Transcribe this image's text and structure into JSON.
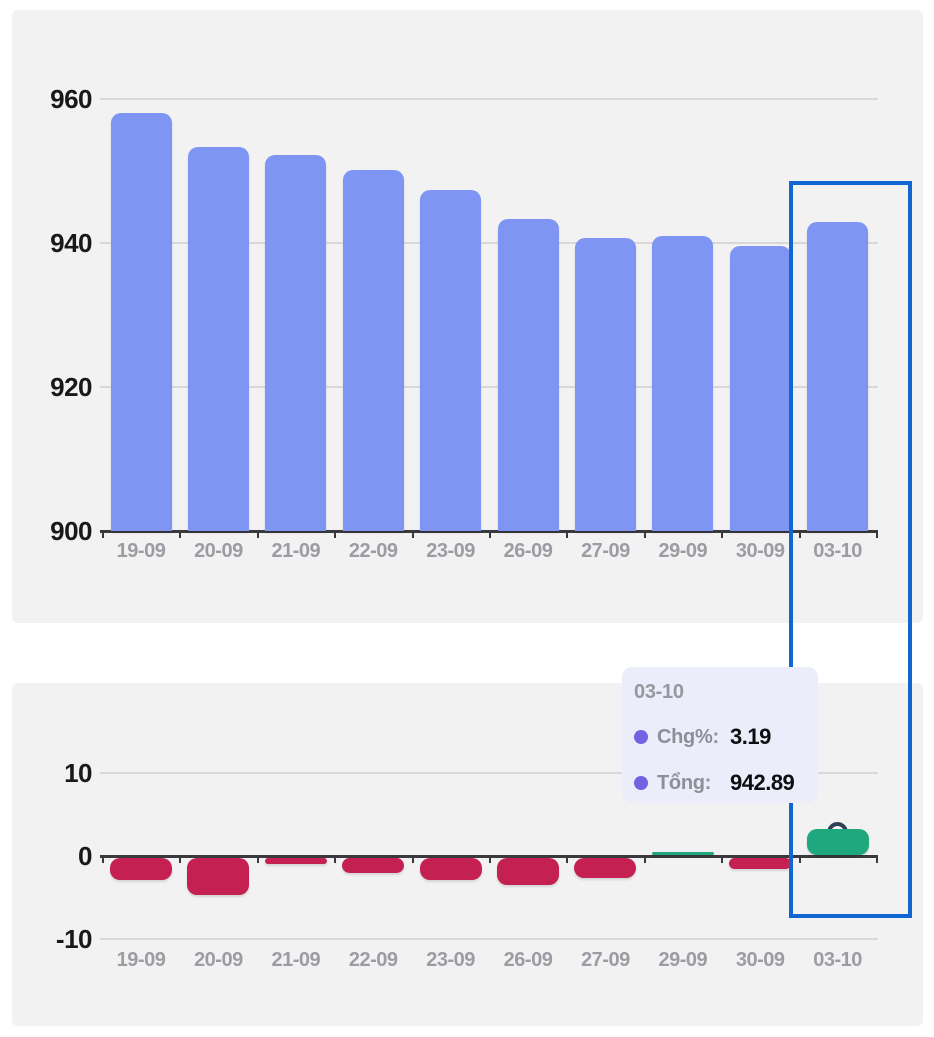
{
  "page": {
    "background": "#ffffff"
  },
  "tooltip": {
    "title": "03-10",
    "rows": [
      {
        "label": "Chg%:",
        "value": "3.19"
      },
      {
        "label": "Tổng:",
        "value": "942.89"
      }
    ],
    "dot_color": "#7561E2",
    "bg_color": "#ECEDFA"
  },
  "highlight": {
    "category": "03-10",
    "color": "#1266D1"
  },
  "axis_style": {
    "grid_color": "#D8D8DB",
    "axis_color": "#3A3A3E",
    "ylabel_color": "#19191C",
    "xlabel_color": "#9C9CA3"
  },
  "chart_data": [
    {
      "type": "bar",
      "title": "",
      "categories": [
        "19-09",
        "20-09",
        "21-09",
        "22-09",
        "23-09",
        "26-09",
        "27-09",
        "29-09",
        "30-09",
        "03-10"
      ],
      "values": [
        958.0,
        953.4,
        952.2,
        950.1,
        947.3,
        943.3,
        940.7,
        941.0,
        939.6,
        942.89
      ],
      "ylim": [
        900,
        960
      ],
      "yticks": [
        960,
        940,
        920,
        900
      ],
      "bar_color": "#7E95F3",
      "grid": true,
      "legend": false
    },
    {
      "type": "bar",
      "title": "",
      "categories": [
        "19-09",
        "20-09",
        "21-09",
        "22-09",
        "23-09",
        "26-09",
        "27-09",
        "29-09",
        "30-09",
        "03-10"
      ],
      "values": [
        -3.0,
        -4.7,
        -1.0,
        -2.1,
        -2.9,
        -3.6,
        -2.7,
        0.4,
        -1.6,
        3.19
      ],
      "ylim": [
        -10,
        10
      ],
      "yticks": [
        10,
        0,
        -10
      ],
      "positive_color": "#1FA87D",
      "negative_color": "#C42052",
      "marker_category": "03-10",
      "grid": true,
      "legend": false
    }
  ]
}
